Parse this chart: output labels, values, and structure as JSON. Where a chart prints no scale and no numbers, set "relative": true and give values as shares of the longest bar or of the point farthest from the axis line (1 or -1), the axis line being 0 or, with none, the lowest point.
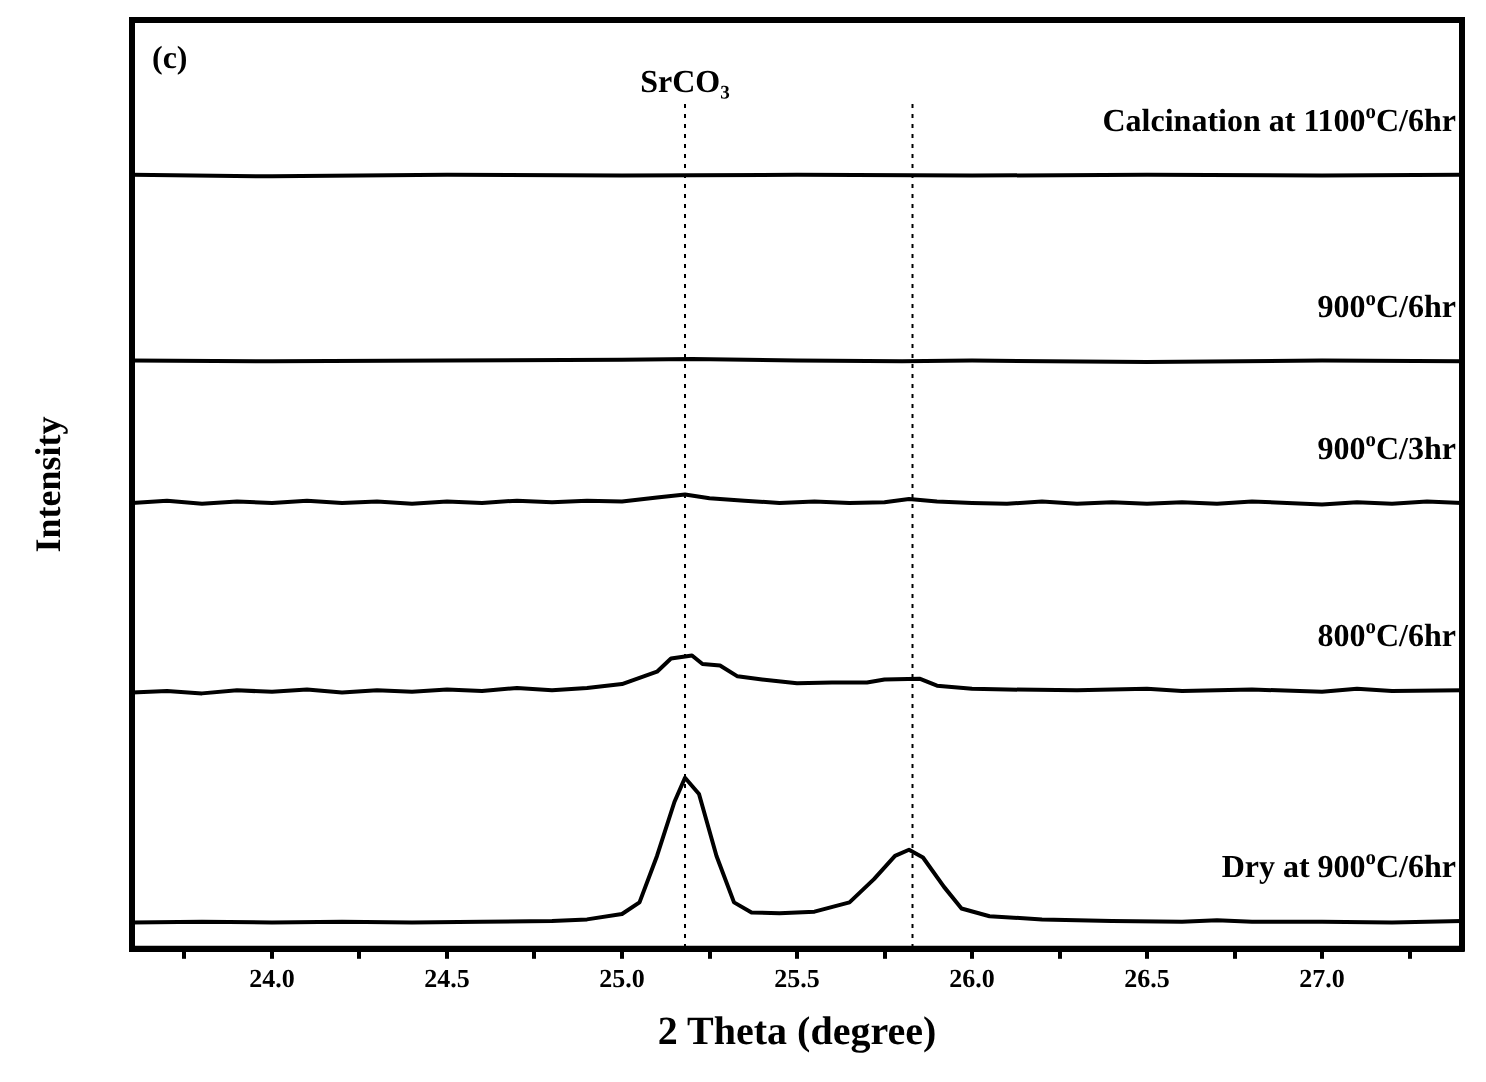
{
  "chart_data": {
    "type": "line",
    "relative": true,
    "xlabel": "2 Theta (degree)",
    "ylabel": "Intensity",
    "annotations": [
      "(c)"
    ],
    "xlim": [
      23.6,
      27.4
    ],
    "xticks": [
      {
        "value": 23.75,
        "label": null
      },
      {
        "value": 24,
        "label": "24.0"
      },
      {
        "value": 24.25,
        "label": null
      },
      {
        "value": 24.5,
        "label": "24.5"
      },
      {
        "value": 24.75,
        "label": null
      },
      {
        "value": 25,
        "label": "25.0"
      },
      {
        "value": 25.25,
        "label": null
      },
      {
        "value": 25.5,
        "label": "25.5"
      },
      {
        "value": 25.75,
        "label": null
      },
      {
        "value": 26,
        "label": "26.0"
      },
      {
        "value": 26.25,
        "label": null
      },
      {
        "value": 26.5,
        "label": "26.5"
      },
      {
        "value": 26.75,
        "label": null
      },
      {
        "value": 27,
        "label": "27.0"
      },
      {
        "value": 27.25,
        "label": null
      }
    ],
    "legend": false,
    "marker": "none",
    "line_style": "solid",
    "ref_lines": [
      {
        "axis": "x",
        "value": 25.18,
        "label": "SrCO₃",
        "line_style": "dotted",
        "color": "#000000"
      },
      {
        "axis": "x",
        "value": 25.83,
        "label": null,
        "line_style": "dotted",
        "color": "#000000"
      }
    ],
    "series": [
      {
        "name": "Calcination at 1100$^{o}$C/6hr",
        "color": "#000000",
        "x": [
          23.6,
          24.0,
          24.5,
          25.0,
          25.5,
          26.0,
          26.5,
          27.0,
          27.4
        ],
        "values": [
          1.0,
          0.998,
          1.0,
          0.999,
          1.0,
          0.999,
          1.0,
          0.999,
          1.0
        ]
      },
      {
        "name": "900$^{o}$C/6hr",
        "color": "#000000",
        "x": [
          23.6,
          24.0,
          24.5,
          25.0,
          25.2,
          25.5,
          25.8,
          26.0,
          26.5,
          27.0,
          27.4
        ],
        "values": [
          0.76,
          0.759,
          0.76,
          0.761,
          0.762,
          0.76,
          0.759,
          0.76,
          0.758,
          0.76,
          0.759
        ]
      },
      {
        "name": "900$^{o}$C/3hr",
        "color": "#000000",
        "x": [
          23.6,
          23.7,
          23.8,
          23.9,
          24.0,
          24.1,
          24.2,
          24.3,
          24.4,
          24.5,
          24.6,
          24.7,
          24.8,
          24.9,
          25.0,
          25.1,
          25.18,
          25.25,
          25.35,
          25.45,
          25.55,
          25.65,
          25.75,
          25.82,
          25.9,
          26.0,
          26.1,
          26.2,
          26.3,
          26.4,
          26.5,
          26.6,
          26.7,
          26.8,
          26.9,
          27.0,
          27.1,
          27.2,
          27.3,
          27.4
        ],
        "values": [
          0.576,
          0.579,
          0.575,
          0.578,
          0.576,
          0.579,
          0.576,
          0.578,
          0.575,
          0.578,
          0.576,
          0.579,
          0.577,
          0.579,
          0.578,
          0.583,
          0.587,
          0.582,
          0.579,
          0.576,
          0.578,
          0.576,
          0.577,
          0.581,
          0.578,
          0.576,
          0.575,
          0.578,
          0.575,
          0.577,
          0.575,
          0.577,
          0.575,
          0.578,
          0.576,
          0.574,
          0.577,
          0.575,
          0.578,
          0.576
        ]
      },
      {
        "name": "800$^{o}$C/6hr",
        "color": "#000000",
        "x": [
          23.6,
          23.7,
          23.8,
          23.9,
          24.0,
          24.1,
          24.2,
          24.3,
          24.4,
          24.5,
          24.6,
          24.7,
          24.8,
          24.9,
          25.0,
          25.05,
          25.1,
          25.14,
          25.2,
          25.23,
          25.28,
          25.33,
          25.4,
          25.5,
          25.6,
          25.7,
          25.75,
          25.85,
          25.9,
          26.0,
          26.1,
          26.3,
          26.5,
          26.6,
          26.8,
          27.0,
          27.1,
          27.2,
          27.4
        ],
        "values": [
          0.331,
          0.333,
          0.33,
          0.334,
          0.332,
          0.335,
          0.331,
          0.334,
          0.332,
          0.335,
          0.333,
          0.337,
          0.334,
          0.337,
          0.342,
          0.35,
          0.358,
          0.375,
          0.379,
          0.368,
          0.366,
          0.352,
          0.348,
          0.343,
          0.344,
          0.344,
          0.348,
          0.349,
          0.34,
          0.336,
          0.335,
          0.334,
          0.336,
          0.333,
          0.335,
          0.332,
          0.336,
          0.333,
          0.334
        ]
      },
      {
        "name": "Dry at 900$^{o}$C/6hr",
        "color": "#000000",
        "x": [
          23.6,
          23.8,
          24.0,
          24.2,
          24.4,
          24.6,
          24.8,
          24.9,
          25.0,
          25.05,
          25.1,
          25.15,
          25.18,
          25.22,
          25.27,
          25.32,
          25.37,
          25.45,
          25.55,
          25.65,
          25.72,
          25.78,
          25.82,
          25.86,
          25.92,
          25.97,
          26.05,
          26.2,
          26.4,
          26.6,
          26.7,
          26.8,
          27.0,
          27.2,
          27.4
        ],
        "values": [
          0.034,
          0.035,
          0.034,
          0.035,
          0.034,
          0.035,
          0.036,
          0.038,
          0.045,
          0.06,
          0.12,
          0.19,
          0.221,
          0.2,
          0.12,
          0.06,
          0.047,
          0.046,
          0.048,
          0.06,
          0.09,
          0.12,
          0.128,
          0.118,
          0.08,
          0.052,
          0.042,
          0.038,
          0.036,
          0.035,
          0.037,
          0.035,
          0.035,
          0.034,
          0.036
        ]
      }
    ]
  }
}
